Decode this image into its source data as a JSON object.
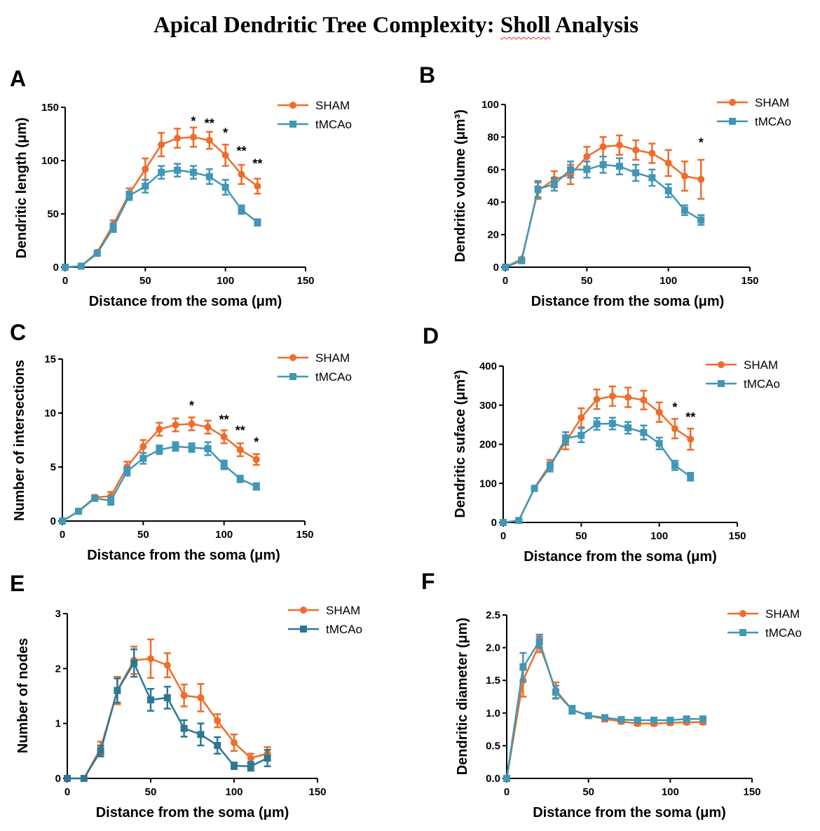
{
  "page": {
    "title": "Apical Dendritic Tree Complexity: Sholl Analysis",
    "title_underlined": "Sholl"
  },
  "colors": {
    "sham": "#ee6d2b",
    "tmcao": "#4197b5",
    "tmcao_dark": "#2e7793",
    "axis": "#000000",
    "spellcheck": "#e23030"
  },
  "chart_data": [
    {
      "panel": "A",
      "type": "line",
      "xlabel": "Distance from the soma (μm)",
      "ylabel": "Dendritic length (μm)",
      "xlim": [
        0,
        150
      ],
      "ylim": [
        0,
        150
      ],
      "xticks": [
        0,
        50,
        100,
        150
      ],
      "yticks": [
        0,
        50,
        100,
        150
      ],
      "legend": "top-right",
      "grid": false,
      "x": [
        0,
        10,
        20,
        30,
        40,
        50,
        60,
        70,
        80,
        90,
        100,
        110,
        120
      ],
      "series": [
        {
          "name": "SHAM",
          "color": "#ee6d2b",
          "marker": "circle",
          "values": [
            0,
            1,
            14,
            40,
            69,
            92,
            115,
            121,
            122,
            119,
            105,
            87,
            76
          ],
          "errors": [
            0,
            0.5,
            1.5,
            4,
            5,
            10,
            11,
            9,
            9,
            8,
            10,
            9,
            7
          ]
        },
        {
          "name": "tMCAo",
          "color": "#4197b5",
          "marker": "square",
          "values": [
            0,
            1,
            13,
            37,
            67,
            76,
            89,
            91,
            89,
            85,
            75,
            54,
            42
          ],
          "errors": [
            0,
            0.5,
            1.5,
            4,
            4,
            6,
            6,
            6,
            6,
            7,
            7,
            4,
            3
          ]
        }
      ],
      "annotations": [
        {
          "x": 80,
          "y": 133,
          "text": "*"
        },
        {
          "x": 90,
          "y": 131,
          "text": "**"
        },
        {
          "x": 100,
          "y": 122,
          "text": "*"
        },
        {
          "x": 110,
          "y": 105,
          "text": "**"
        },
        {
          "x": 120,
          "y": 93,
          "text": "**"
        }
      ]
    },
    {
      "panel": "B",
      "type": "line",
      "xlabel": "Distance from the soma (μm)",
      "ylabel": "Dendritic volume (μm³)",
      "xlim": [
        0,
        150
      ],
      "ylim": [
        0,
        100
      ],
      "xticks": [
        0,
        50,
        100,
        150
      ],
      "yticks": [
        0,
        20,
        40,
        60,
        80,
        100
      ],
      "legend": "top-right",
      "grid": false,
      "x": [
        0,
        10,
        20,
        30,
        40,
        50,
        60,
        70,
        80,
        90,
        100,
        110,
        120
      ],
      "series": [
        {
          "name": "SHAM",
          "color": "#ee6d2b",
          "marker": "circle",
          "values": [
            0,
            5,
            47,
            54,
            57,
            68,
            74,
            75,
            72,
            70,
            64,
            56,
            54
          ],
          "errors": [
            0,
            1,
            5,
            5,
            6,
            6,
            6,
            6,
            6,
            6,
            8,
            9,
            12
          ]
        },
        {
          "name": "tMCAo",
          "color": "#4197b5",
          "marker": "square",
          "values": [
            0,
            4,
            48,
            51,
            60,
            60,
            63,
            62,
            58,
            55,
            47,
            35,
            29
          ],
          "errors": [
            0,
            1,
            5,
            4,
            5,
            5,
            5,
            5,
            5,
            5,
            4,
            3,
            3
          ]
        }
      ],
      "annotations": [
        {
          "x": 120,
          "y": 74,
          "text": "*"
        }
      ]
    },
    {
      "panel": "C",
      "type": "line",
      "xlabel": "Distance from the soma (μm)",
      "ylabel": "Number of intersections",
      "xlim": [
        0,
        150
      ],
      "ylim": [
        0,
        15
      ],
      "xticks": [
        0,
        50,
        100,
        150
      ],
      "yticks": [
        0,
        5,
        10,
        15
      ],
      "legend": "top-right",
      "grid": false,
      "x": [
        0,
        10,
        20,
        30,
        40,
        50,
        60,
        70,
        80,
        90,
        100,
        110,
        120
      ],
      "series": [
        {
          "name": "SHAM",
          "color": "#ee6d2b",
          "marker": "circle",
          "values": [
            0,
            0.9,
            2.2,
            2.3,
            5.0,
            6.9,
            8.5,
            8.9,
            9.0,
            8.7,
            7.8,
            6.6,
            5.7
          ],
          "errors": [
            0,
            0.1,
            0.2,
            0.4,
            0.5,
            0.6,
            0.6,
            0.6,
            0.6,
            0.6,
            0.6,
            0.6,
            0.5
          ]
        },
        {
          "name": "tMCAo",
          "color": "#4197b5",
          "marker": "square",
          "values": [
            0,
            0.9,
            2.1,
            1.9,
            4.6,
            5.8,
            6.6,
            6.9,
            6.8,
            6.7,
            5.2,
            3.9,
            3.2
          ],
          "errors": [
            0,
            0.1,
            0.2,
            0.4,
            0.4,
            0.5,
            0.4,
            0.4,
            0.4,
            0.6,
            0.4,
            0.3,
            0.3
          ]
        }
      ],
      "annotations": [
        {
          "x": 80,
          "y": 10.3,
          "text": "*"
        },
        {
          "x": 100,
          "y": 9.0,
          "text": "**"
        },
        {
          "x": 110,
          "y": 8.0,
          "text": "**"
        },
        {
          "x": 120,
          "y": 6.9,
          "text": "*"
        }
      ]
    },
    {
      "panel": "D",
      "type": "line",
      "xlabel": "Distance from the soma (μm)",
      "ylabel": "Dendritic suface (μm²)",
      "xlim": [
        0,
        150
      ],
      "ylim": [
        0,
        400
      ],
      "xticks": [
        0,
        50,
        100,
        150
      ],
      "yticks": [
        0,
        100,
        200,
        300,
        400
      ],
      "legend": "top-right",
      "grid": false,
      "x": [
        0,
        10,
        20,
        30,
        40,
        50,
        60,
        70,
        80,
        90,
        100,
        110,
        120
      ],
      "series": [
        {
          "name": "SHAM",
          "color": "#ee6d2b",
          "marker": "circle",
          "values": [
            0,
            5,
            88,
            148,
            205,
            268,
            315,
            323,
            320,
            313,
            282,
            240,
            213
          ],
          "errors": [
            0,
            2,
            5,
            12,
            18,
            24,
            25,
            25,
            25,
            24,
            25,
            25,
            27
          ]
        },
        {
          "name": "tMCAo",
          "color": "#4197b5",
          "marker": "square",
          "values": [
            0,
            5,
            87,
            142,
            215,
            223,
            252,
            253,
            242,
            230,
            202,
            146,
            117
          ],
          "errors": [
            0,
            2,
            5,
            12,
            16,
            18,
            15,
            15,
            15,
            18,
            15,
            12,
            10
          ]
        }
      ],
      "annotations": [
        {
          "x": 110,
          "y": 283,
          "text": "*"
        },
        {
          "x": 120,
          "y": 258,
          "text": "**"
        }
      ]
    },
    {
      "panel": "E",
      "type": "line",
      "xlabel": "Distance from the soma (μm)",
      "ylabel": "Number of nodes",
      "xlim": [
        0,
        150
      ],
      "ylim": [
        0,
        3
      ],
      "xticks": [
        0,
        50,
        100,
        150
      ],
      "yticks": [
        0,
        1,
        2,
        3
      ],
      "legend": "top-right",
      "grid": false,
      "x": [
        0,
        10,
        20,
        30,
        40,
        50,
        60,
        70,
        80,
        90,
        100,
        110,
        120
      ],
      "series": [
        {
          "name": "SHAM",
          "color": "#ee6d2b",
          "marker": "circle",
          "values": [
            0,
            0,
            0.55,
            1.6,
            2.15,
            2.18,
            2.06,
            1.51,
            1.47,
            1.05,
            0.65,
            0.37,
            0.45
          ],
          "errors": [
            0,
            0,
            0.12,
            0.25,
            0.25,
            0.35,
            0.22,
            0.2,
            0.25,
            0.12,
            0.15,
            0.08,
            0.12
          ]
        },
        {
          "name": "tMCAo",
          "color": "#2e7793",
          "marker": "square",
          "values": [
            0,
            0,
            0.5,
            1.6,
            2.1,
            1.43,
            1.47,
            0.91,
            0.8,
            0.6,
            0.23,
            0.22,
            0.37
          ],
          "errors": [
            0,
            0,
            0.1,
            0.22,
            0.25,
            0.2,
            0.2,
            0.15,
            0.2,
            0.15,
            0.06,
            0.08,
            0.15
          ]
        }
      ],
      "annotations": []
    },
    {
      "panel": "F",
      "type": "line",
      "xlabel": "Distance from the soma (μm)",
      "ylabel": "Dendritic diameter (μm)",
      "xlim": [
        0,
        150
      ],
      "ylim": [
        0,
        2.5
      ],
      "xticks": [
        0,
        50,
        100,
        150
      ],
      "yticks": [
        "0.0",
        "0.5",
        "1.0",
        "1.5",
        "2.0",
        "2.5"
      ],
      "legend": "top-right",
      "grid": false,
      "x": [
        0,
        10,
        20,
        30,
        40,
        50,
        60,
        70,
        80,
        90,
        100,
        110,
        120
      ],
      "series": [
        {
          "name": "SHAM",
          "color": "#ee6d2b",
          "marker": "circle",
          "values": [
            0,
            1.5,
            2.05,
            1.35,
            1.05,
            0.96,
            0.91,
            0.87,
            0.84,
            0.84,
            0.85,
            0.86,
            0.86
          ],
          "errors": [
            0,
            0.25,
            0.12,
            0.12,
            0.06,
            0.04,
            0.04,
            0.03,
            0.03,
            0.03,
            0.03,
            0.03,
            0.03
          ]
        },
        {
          "name": "tMCAo",
          "color": "#4197b5",
          "marker": "square",
          "values": [
            0,
            1.7,
            2.1,
            1.32,
            1.05,
            0.96,
            0.93,
            0.9,
            0.89,
            0.89,
            0.89,
            0.91,
            0.91
          ],
          "errors": [
            0,
            0.22,
            0.1,
            0.1,
            0.06,
            0.04,
            0.03,
            0.03,
            0.03,
            0.03,
            0.03,
            0.03,
            0.03
          ]
        }
      ],
      "annotations": []
    }
  ]
}
